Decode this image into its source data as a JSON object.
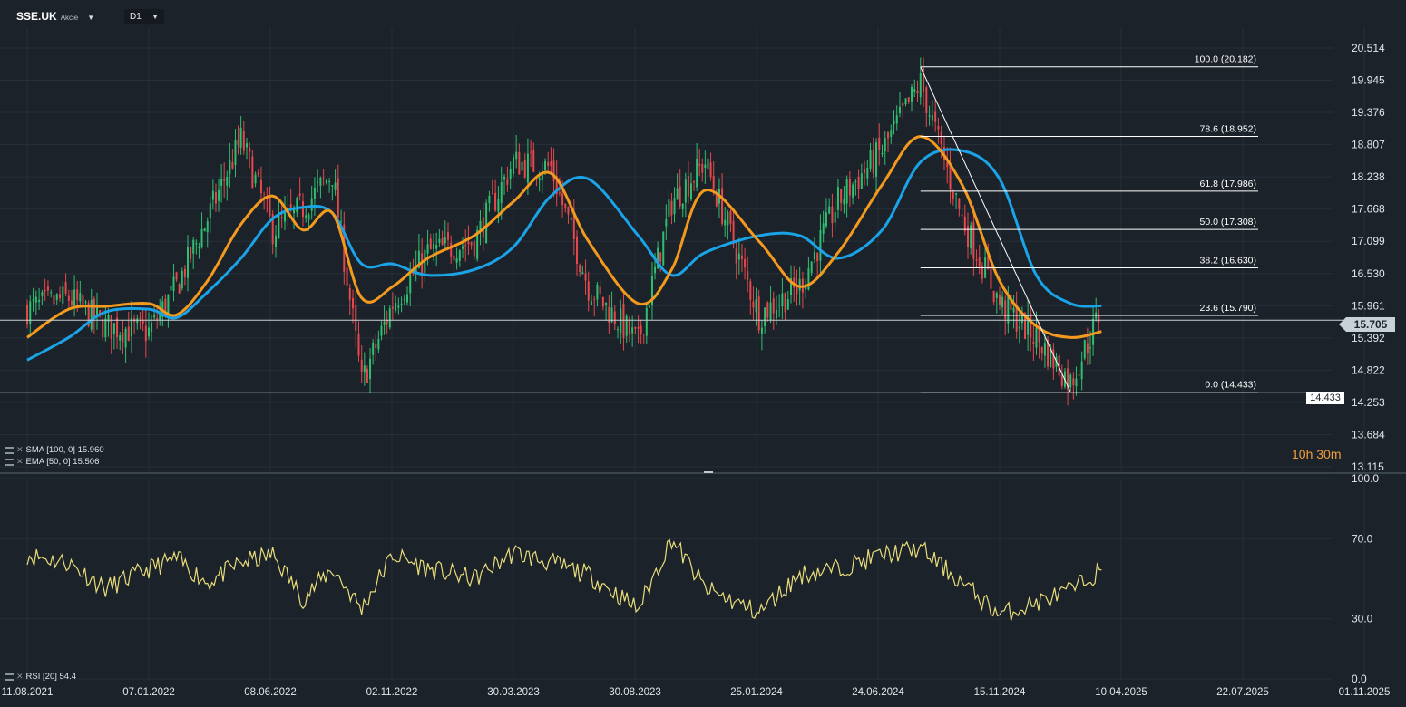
{
  "header": {
    "symbol": "SSE.UK",
    "instrument_type": "Akcie",
    "timeframe": "D1"
  },
  "countdown": "10h 30m",
  "current_price_label": "15.705",
  "low_price_label": "14.433",
  "indicators": {
    "sma": "SMA [100, 0] 15.960",
    "ema": "EMA [50, 0] 15.506",
    "rsi": "RSI [20] 54.4"
  },
  "colors": {
    "background": "#1b2229",
    "bull": "#2fbf71",
    "bear": "#e5484d",
    "sma": "#1ba3e8",
    "ema": "#f39a1e",
    "rsi": "#e8dc7a",
    "fib": "#ffffff"
  },
  "chart_data": [
    {
      "type": "candlestick",
      "price_axis_ticks": [
        "20.514",
        "19.945",
        "19.376",
        "18.807",
        "18.238",
        "17.668",
        "17.099",
        "16.530",
        "15.961",
        "15.392",
        "14.822",
        "14.253",
        "13.684",
        "13.115"
      ],
      "ylim": [
        13.115,
        20.514
      ],
      "date_axis_ticks": [
        "11.08.2021",
        "07.01.2022",
        "08.06.2022",
        "02.11.2022",
        "30.03.2023",
        "30.08.2023",
        "25.01.2024",
        "24.06.2024",
        "15.11.2024",
        "10.04.2025",
        "22.07.2025",
        "01.11.2025"
      ],
      "close_series": [
        {
          "date": "11.08.2021",
          "close": 15.9
        },
        {
          "date": "01.10.2021",
          "close": 16.1
        },
        {
          "date": "15.11.2021",
          "close": 15.6
        },
        {
          "date": "07.01.2022",
          "close": 15.5
        },
        {
          "date": "10.02.2022",
          "close": 16.3
        },
        {
          "date": "20.03.2022",
          "close": 17.5
        },
        {
          "date": "30.04.2022",
          "close": 18.9
        },
        {
          "date": "08.06.2022",
          "close": 17.3
        },
        {
          "date": "15.07.2022",
          "close": 17.7
        },
        {
          "date": "20.08.2022",
          "close": 18.3
        },
        {
          "date": "25.09.2022",
          "close": 14.6
        },
        {
          "date": "02.11.2022",
          "close": 16.0
        },
        {
          "date": "15.12.2022",
          "close": 16.9
        },
        {
          "date": "10.02.2023",
          "close": 17.1
        },
        {
          "date": "30.03.2023",
          "close": 18.5
        },
        {
          "date": "15.05.2023",
          "close": 18.4
        },
        {
          "date": "30.06.2023",
          "close": 16.3
        },
        {
          "date": "30.08.2023",
          "close": 15.3
        },
        {
          "date": "10.10.2023",
          "close": 17.8
        },
        {
          "date": "20.11.2023",
          "close": 18.5
        },
        {
          "date": "25.01.2024",
          "close": 15.8
        },
        {
          "date": "15.03.2024",
          "close": 16.3
        },
        {
          "date": "01.05.2024",
          "close": 17.8
        },
        {
          "date": "24.06.2024",
          "close": 18.7
        },
        {
          "date": "10.08.2024",
          "close": 19.9
        },
        {
          "date": "30.09.2024",
          "close": 17.5
        },
        {
          "date": "15.11.2024",
          "close": 16.0
        },
        {
          "date": "30.12.2024",
          "close": 15.4
        },
        {
          "date": "10.02.2025",
          "close": 14.6
        },
        {
          "date": "20.03.2025",
          "close": 15.9
        }
      ],
      "series": [
        {
          "name": "SMA [100, 0]",
          "last": 15.96,
          "values": [
            15.0,
            15.4,
            15.85,
            15.9,
            15.75,
            16.2,
            16.8,
            17.5,
            17.7,
            17.6,
            16.7,
            16.7,
            16.5,
            16.6,
            17.0,
            17.9,
            18.2,
            17.2,
            16.5,
            16.9,
            17.2,
            17.2,
            16.8,
            17.3,
            18.5,
            18.7,
            18.2,
            16.5,
            16.0,
            15.96
          ]
        },
        {
          "name": "EMA [50, 0]",
          "last": 15.506,
          "values": [
            15.4,
            15.9,
            15.95,
            16.0,
            15.8,
            16.4,
            17.4,
            17.9,
            17.3,
            17.6,
            16.1,
            16.3,
            16.8,
            17.2,
            17.8,
            18.3,
            17.1,
            16.0,
            16.6,
            18.0,
            17.1,
            16.3,
            16.9,
            18.1,
            18.95,
            18.1,
            16.4,
            15.6,
            15.4,
            15.506
          ]
        }
      ],
      "fibonacci": [
        {
          "label": "100.0 (20.182)",
          "price": 20.182
        },
        {
          "label": "78.6 (18.952)",
          "price": 18.952
        },
        {
          "label": "61.8 (17.986)",
          "price": 17.986
        },
        {
          "label": "50.0 (17.308)",
          "price": 17.308
        },
        {
          "label": "38.2 (16.630)",
          "price": 16.63
        },
        {
          "label": "23.6 (15.790)",
          "price": 15.79
        },
        {
          "label": "0.0 (14.433)",
          "price": 14.433
        }
      ],
      "horizontal_lines": [
        15.705,
        14.433
      ],
      "trendline": {
        "from": {
          "date": "10.08.2024",
          "price": 20.182
        },
        "to": {
          "date": "10.02.2025",
          "price": 14.433
        }
      }
    },
    {
      "type": "line",
      "rsi_axis_ticks": [
        "100.0",
        "70.0",
        "30.0",
        "0.0"
      ],
      "ylim": [
        0,
        100
      ],
      "series": [
        {
          "name": "RSI [20]",
          "last": 54.4,
          "values": [
            62,
            58,
            45,
            55,
            60,
            48,
            58,
            62,
            40,
            55,
            35,
            62,
            55,
            50,
            63,
            58,
            52,
            35,
            70,
            45,
            33,
            52,
            55,
            62,
            65,
            48,
            32,
            38,
            44,
            54.4
          ]
        }
      ]
    }
  ]
}
